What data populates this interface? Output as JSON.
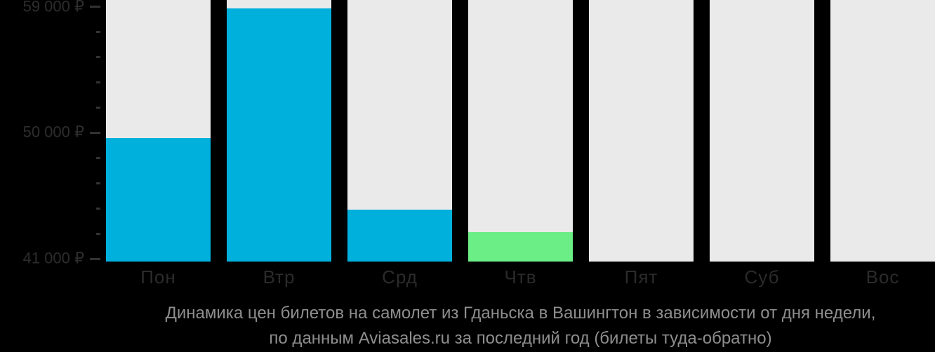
{
  "chart_data": {
    "type": "bar",
    "categories": [
      "Пон",
      "Втр",
      "Срд",
      "Чтв",
      "Пят",
      "Суб",
      "Вос"
    ],
    "values": [
      49600,
      58900,
      44500,
      42900,
      null,
      null,
      null
    ],
    "bar_colors": [
      "#00B0DC",
      "#00B0DC",
      "#00B0DC",
      "#6BEE86",
      null,
      null,
      null
    ],
    "title": "Динамика цен билетов на самолет из Гданьска в Вашингтон в зависимости от дня недели, по данным Aviasales.ru за последний год (билеты туда-обратно)",
    "xlabel": "",
    "ylabel": "",
    "ylim": [
      40800,
      59500
    ],
    "yticks_major": [
      {
        "value": 59000,
        "label": "59 000 ₽"
      },
      {
        "value": 50000,
        "label": "50 000 ₽"
      },
      {
        "value": 41000,
        "label": "41 000 ₽"
      }
    ],
    "ytick_minor_step": 1800,
    "currency": "₽",
    "grid": false,
    "legend": "none",
    "colors": {
      "regular_bar": "#00B0DC",
      "lowest_price_bar": "#6BEE86",
      "column_track": "#EAEAEA",
      "background": "#000000",
      "axis_text": "#2d2d2d",
      "caption_text": "#8e8e8e"
    }
  },
  "caption": {
    "line1": "Динамика цен билетов на самолет из Гданьска в Вашингтон в зависимости от дня недели,",
    "line2": "по данным Aviasales.ru за последний год (билеты туда-обратно)"
  }
}
